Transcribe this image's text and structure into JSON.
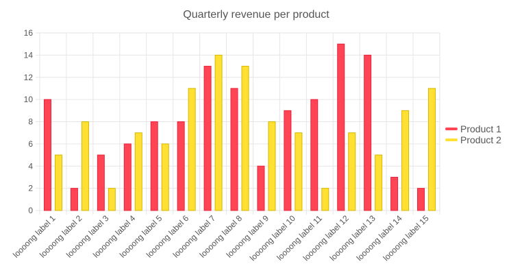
{
  "chart_data": {
    "type": "bar",
    "title": "Quarterly revenue per product",
    "xlabel": "",
    "ylabel": "",
    "ylim": [
      0,
      16
    ],
    "yticks": [
      0,
      2,
      4,
      6,
      8,
      10,
      12,
      14,
      16
    ],
    "grid": true,
    "legend_position": "right",
    "categories": [
      "loooong label 1",
      "loooong label 2",
      "loooong label 3",
      "loooong label 4",
      "loooong label 5",
      "loooong label 6",
      "loooong label 7",
      "loooong label 8",
      "loooong label 9",
      "loooong label 10",
      "loooong label 11",
      "loooong label 12",
      "loooong label 13",
      "loooong label 14",
      "loooong label 15"
    ],
    "series": [
      {
        "name": "Product 1",
        "color": "#ff4455",
        "border": "#e8233a",
        "values": [
          10,
          2,
          5,
          6,
          8,
          8,
          13,
          11,
          4,
          9,
          10,
          15,
          14,
          3,
          2
        ]
      },
      {
        "name": "Product 2",
        "color": "#ffe033",
        "border": "#d7b600",
        "values": [
          5,
          8,
          2,
          7,
          6,
          11,
          14,
          13,
          8,
          7,
          2,
          7,
          5,
          9,
          11
        ]
      }
    ]
  }
}
